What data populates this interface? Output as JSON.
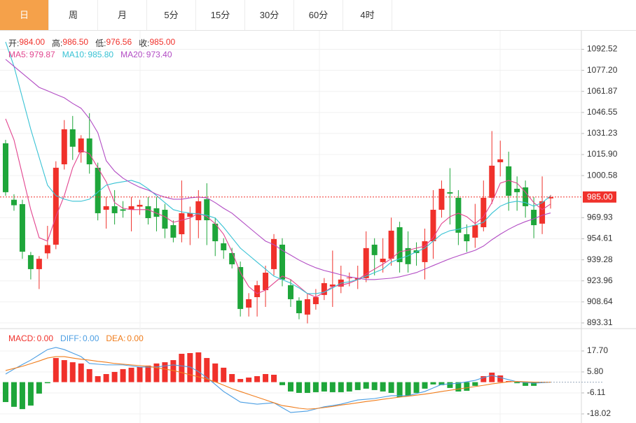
{
  "tabs": {
    "items": [
      "日",
      "周",
      "月",
      "5分",
      "15分",
      "30分",
      "60分",
      "4时"
    ],
    "active": 0
  },
  "chart_data": [
    {
      "type": "candlestick",
      "info": [
        {
          "label": "开:",
          "value": "984.00"
        },
        {
          "label": "高:",
          "value": "986.50"
        },
        {
          "label": "低:",
          "value": "976.56"
        },
        {
          "label": "收:",
          "value": "985.00"
        }
      ],
      "open": [
        1024.1,
        983,
        979.8,
        942.7,
        932.5,
        944,
        950.3,
        1008.8,
        1034.3,
        1017.5,
        1027.6,
        1006.3,
        975.7,
        978.3,
        976,
        975.7,
        978,
        978.3,
        976.8,
        975.7,
        964.5,
        957.9,
        970.6,
        968.1,
        983.4,
        965.6,
        951.3,
        944.2,
        934,
        904.5,
        912.1,
        917.2,
        932.5,
        950.3,
        920.8,
        909.6,
        899.4,
        907,
        913.7,
        919.8,
        919.8,
        925.9,
        924.9,
        925.9,
        950.3,
        937.6,
        940.1,
        963,
        947.8,
        946.2,
        937.6,
        952.8,
        975.7,
        988.5,
        984.4,
        957.9,
        955.4,
        963,
        984.4,
        1010.3,
        1007.3,
        991,
        992,
        975.7,
        965.6,
        984
      ],
      "high": [
        1026.6,
        987,
        983,
        945,
        942,
        964,
        1011,
        1041,
        1044,
        1030,
        1046,
        1010,
        985,
        990,
        982,
        985,
        983,
        985,
        985,
        980,
        968,
        997,
        978,
        990,
        995,
        970,
        955,
        948,
        938,
        915,
        924,
        935,
        958,
        955,
        925,
        912,
        915,
        918,
        926,
        946,
        935,
        930,
        935,
        960,
        955,
        955,
        970,
        967,
        960,
        952,
        962,
        990,
        997,
        1006,
        990,
        965,
        980,
        997,
        1033,
        1026,
        1018,
        1000,
        997,
        985,
        1000,
        986.5
      ],
      "low": [
        985.9,
        975,
        940,
        925,
        918,
        940,
        947,
        1005,
        1012,
        1010,
        1002,
        968,
        962,
        965,
        970,
        960,
        972,
        965,
        960,
        955,
        952,
        952,
        950,
        955,
        950,
        942,
        940,
        933,
        898,
        898,
        898,
        905,
        928,
        920,
        905,
        896,
        893,
        903,
        910,
        905,
        915,
        920,
        918,
        923,
        928,
        930,
        935,
        930,
        930,
        935,
        925,
        940,
        970,
        965,
        950,
        945,
        948,
        960,
        980,
        1000,
        975,
        975,
        970,
        955,
        958,
        976.56
      ],
      "close": [
        988.5,
        979,
        945.2,
        932.5,
        940,
        950,
        1006.3,
        1034.3,
        1021.6,
        1027.6,
        1008.8,
        973.2,
        978.3,
        973.2,
        975,
        978.3,
        979.3,
        969.6,
        970.6,
        962,
        955.4,
        973.2,
        973.2,
        981.9,
        968.1,
        952.8,
        946.2,
        936,
        903.5,
        910.6,
        920.8,
        929.9,
        954.4,
        924.9,
        910.6,
        900.4,
        910.6,
        912.1,
        922.3,
        921.3,
        924.9,
        926.4,
        925.9,
        947.8,
        942.7,
        940.1,
        960.5,
        937.6,
        936.1,
        944.2,
        952.8,
        975.7,
        991,
        987.5,
        959,
        952.8,
        964.5,
        984.4,
        1007.8,
        1012.4,
        985.9,
        988.5,
        978.3,
        964.5,
        981.9,
        985
      ],
      "up_color": "#f0312b",
      "down_color": "#1ea63a",
      "series": [
        {
          "name": "MA5:",
          "value_label": "979.87",
          "color": "#e2458f",
          "values": [
            1041.9,
            1026.6,
            1001.2,
            975.8,
            955.4,
            952.9,
            970.7,
            986.0,
            1006.3,
            1019.0,
            1016.5,
            1006.3,
            996.1,
            980.9,
            976.8,
            975.8,
            975.8,
            975.8,
            973.2,
            970.7,
            966.6,
            968.1,
            969.7,
            973.2,
            970.7,
            965.6,
            957.9,
            945.2,
            930.0,
            919.8,
            914.7,
            917.2,
            922.3,
            927.4,
            924.9,
            919.8,
            914.7,
            912.1,
            915.7,
            919.8,
            920.8,
            922.3,
            924.9,
            929.0,
            932.5,
            936.1,
            940.1,
            945.2,
            946.2,
            947.8,
            949.3,
            955.4,
            965.6,
            970.7,
            973.2,
            970.7,
            965.6,
            970.7,
            980.9,
            995.1,
            997.1,
            995.1,
            988.5,
            980.9,
            975.8,
            979.87
          ]
        },
        {
          "name": "MA10:",
          "value_label": "985.80",
          "color": "#37c2d4",
          "values": [
            1097.9,
            1080.1,
            1057.2,
            1034.3,
            1013.9,
            993.6,
            986.0,
            983.4,
            981.9,
            981.9,
            983.4,
            988.5,
            993.6,
            995.1,
            996.1,
            997.1,
            995.1,
            991.0,
            986.0,
            980.9,
            975.8,
            974.2,
            973.2,
            972.7,
            971.7,
            969.7,
            963.0,
            955.4,
            947.8,
            942.7,
            937.6,
            932.5,
            927.4,
            924.9,
            922.3,
            918.8,
            914.7,
            914.7,
            915.7,
            918.8,
            922.3,
            923.3,
            924.9,
            927.4,
            930.0,
            932.5,
            937.6,
            940.1,
            942.2,
            945.2,
            947.8,
            952.9,
            957.9,
            960.5,
            961.5,
            963.0,
            964.6,
            966.6,
            973.2,
            978.3,
            980.9,
            981.9,
            980.9,
            978.3,
            980.9,
            985.8
          ]
        },
        {
          "name": "MA20:",
          "value_label": "973.40",
          "color": "#b24cc4",
          "values": [
            1085.2,
            1080.1,
            1075.0,
            1069.9,
            1064.8,
            1062.3,
            1059.7,
            1057.2,
            1053.1,
            1049.6,
            1042.0,
            1031.8,
            1011.4,
            1003.8,
            998.7,
            995.1,
            992.1,
            990.0,
            987.0,
            984.9,
            983.4,
            983.4,
            984.4,
            984.9,
            984.4,
            980.9,
            976.8,
            973.2,
            968.1,
            963.0,
            957.9,
            952.9,
            950.3,
            946.2,
            942.7,
            939.1,
            936.1,
            933.5,
            931.5,
            930.0,
            928.4,
            926.9,
            925.9,
            924.9,
            924.9,
            925.4,
            925.9,
            926.9,
            928.4,
            930.0,
            932.5,
            935.1,
            937.6,
            940.1,
            942.2,
            944.2,
            946.2,
            949.3,
            953.9,
            957.9,
            961.5,
            964.6,
            967.1,
            969.1,
            971.7,
            973.4
          ]
        }
      ],
      "ylim": [
        889.2,
        1105.5
      ],
      "yticks": [
        1092.52,
        {
          "value": 1077.2,
          "label": "1077.20"
        },
        1061.87,
        1046.55,
        1031.23,
        {
          "value": 1015.9,
          "label": "1015.90"
        },
        1000.58,
        969.93,
        954.61,
        939.28,
        923.96,
        908.64,
        893.31
      ],
      "grid": true,
      "last_price": {
        "value": 985,
        "label": "985.00",
        "color": "#f0312b"
      }
    },
    {
      "type": "macd",
      "series": [
        {
          "name": "MACD:",
          "kind": "bar",
          "value_label": "0.00",
          "color": "#f0312b",
          "down_color": "#1ea63a",
          "values": [
            -11.3,
            -14.0,
            -15.3,
            -13.3,
            -6.5,
            -0.6,
            13.7,
            12.5,
            11.3,
            10.6,
            7.4,
            3.4,
            4.6,
            5.8,
            7.4,
            8.2,
            8.6,
            9.4,
            10.6,
            11.3,
            12.5,
            16.1,
            16.5,
            16.9,
            13.7,
            10.6,
            8.2,
            4.6,
            1.8,
            2.6,
            3.4,
            4.6,
            4.2,
            -1.7,
            -5.3,
            -6.1,
            -6.1,
            -5.7,
            -5.3,
            -5.7,
            -5.7,
            -5.3,
            -4.5,
            -3.7,
            -4.5,
            -5.3,
            -6.1,
            -8.5,
            -7.7,
            -6.1,
            -3.7,
            -1.3,
            -1.7,
            -3.3,
            -5.3,
            -4.9,
            -2.1,
            3.4,
            5.4,
            3.8,
            0.6,
            -0.6,
            -2.1,
            -2.1,
            -0.2,
            0
          ]
        },
        {
          "name": "DIFF:",
          "kind": "line",
          "value_label": "0.00",
          "color": "#4b9ee3",
          "values": [
            4.6,
            7.4,
            10.0,
            12.5,
            15.5,
            18.5,
            19.7,
            18.5,
            16.5,
            14.5,
            10.6,
            10.2,
            9.8,
            9.8,
            9.8,
            9.2,
            8.6,
            8.6,
            8.6,
            9.2,
            9.8,
            9.2,
            8.6,
            6.0,
            2.6,
            -1.3,
            -5.3,
            -8.3,
            -11.3,
            -11.9,
            -12.5,
            -12.1,
            -11.7,
            -14.5,
            -17.2,
            -16.8,
            -16.4,
            -15.2,
            -14.0,
            -13.3,
            -12.5,
            -11.3,
            -10.1,
            -9.7,
            -9.3,
            -8.5,
            -7.7,
            -7.7,
            -7.7,
            -6.5,
            -5.3,
            -3.3,
            -1.3,
            -1.0,
            -0.6,
            0.2,
            1.0,
            2.6,
            3.8,
            2.6,
            1.4,
            0.2,
            -0.2,
            -0.6,
            -0.3,
            0
          ]
        },
        {
          "name": "DEA:",
          "kind": "line",
          "value_label": "0.00",
          "color": "#f07d1c",
          "values": [
            6.6,
            7.8,
            9.0,
            10.5,
            12.0,
            13.7,
            14.5,
            14.5,
            13.7,
            13.0,
            12.5,
            11.8,
            11.3,
            10.6,
            10.2,
            9.8,
            9.4,
            9.0,
            8.2,
            7.4,
            6.6,
            5.4,
            4.2,
            3.0,
            1.8,
            0.2,
            -1.7,
            -3.7,
            -5.3,
            -6.9,
            -8.5,
            -10.1,
            -11.7,
            -13.3,
            -14.0,
            -14.8,
            -15.3,
            -15.0,
            -14.4,
            -13.8,
            -13.0,
            -12.4,
            -11.7,
            -11.0,
            -10.4,
            -9.7,
            -9.1,
            -8.5,
            -8.0,
            -7.4,
            -6.8,
            -6.1,
            -5.3,
            -4.6,
            -3.9,
            -3.2,
            -2.5,
            -1.8,
            -1.0,
            -0.4,
            0.2,
            0.4,
            0.2,
            0,
            0,
            0
          ]
        }
      ],
      "ylim": [
        -21.2,
        28.4
      ],
      "yticks": [
        {
          "value": 17.7,
          "label": "17.70"
        },
        {
          "value": 5.8,
          "label": "5.80"
        },
        -6.11,
        -18.02
      ],
      "grid": true
    }
  ]
}
